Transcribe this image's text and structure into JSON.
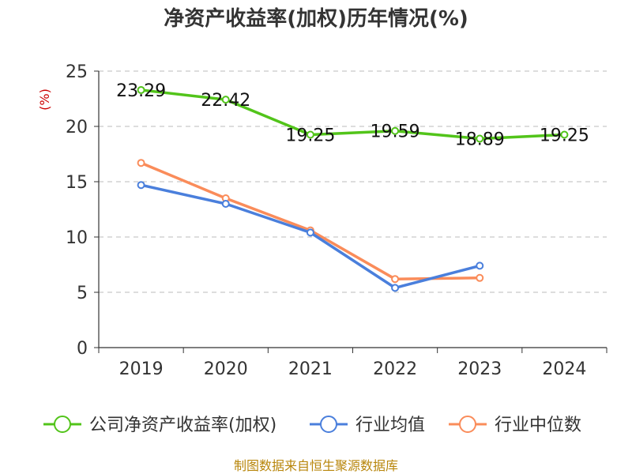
{
  "chart_data": {
    "type": "line",
    "title": "净资产收益率(加权)历年情况(%)",
    "ylabel": "(%)",
    "xlabel": "",
    "categories": [
      "2019",
      "2020",
      "2021",
      "2022",
      "2023",
      "2024"
    ],
    "ylim": [
      0,
      25
    ],
    "yticks": [
      0,
      5,
      10,
      15,
      20,
      25
    ],
    "grid": true,
    "legend_position": "bottom",
    "series": [
      {
        "name": "公司净资产收益率(加权)",
        "color": "#52c41a",
        "values": [
          23.29,
          22.42,
          19.25,
          19.59,
          18.89,
          19.25
        ],
        "show_labels": true
      },
      {
        "name": "行业均值",
        "color": "#4a7fdc",
        "values": [
          14.7,
          13.0,
          10.4,
          5.4,
          7.4,
          null
        ],
        "show_labels": false
      },
      {
        "name": "行业中位数",
        "color": "#fa8c5a",
        "values": [
          16.7,
          13.5,
          10.6,
          6.2,
          6.3,
          null
        ],
        "show_labels": false
      }
    ]
  },
  "footer": {
    "source": "制图数据来自恒生聚源数据库"
  }
}
